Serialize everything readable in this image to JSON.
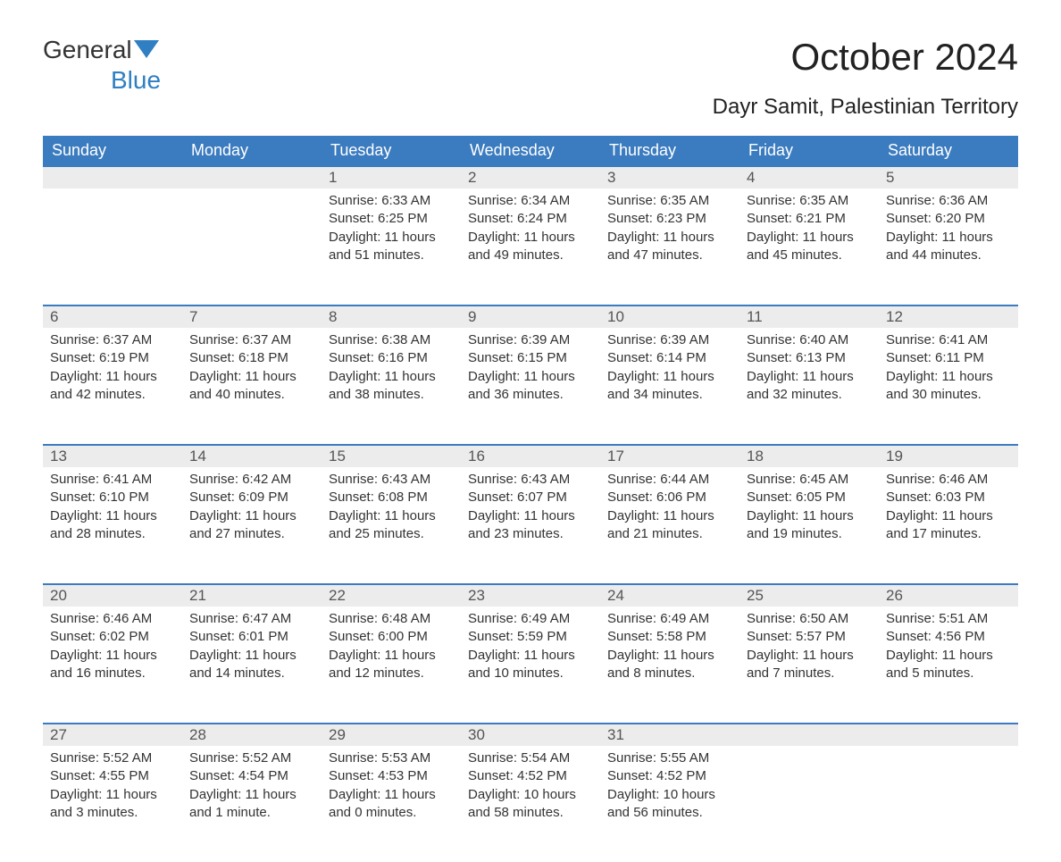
{
  "logo": {
    "text1": "General",
    "text2": "Blue"
  },
  "title": "October 2024",
  "subtitle": "Dayr Samit, Palestinian Territory",
  "colors": {
    "header_bg": "#3b7bbf",
    "header_text": "#ffffff",
    "daynum_bg": "#ececec",
    "daynum_border": "#3b7bbf",
    "body_text": "#333333",
    "logo_blue": "#2f7fc2",
    "background": "#ffffff"
  },
  "typography": {
    "title_fontsize": 42,
    "subtitle_fontsize": 24,
    "header_fontsize": 18,
    "daynum_fontsize": 17,
    "cell_fontsize": 15,
    "logo_fontsize": 28
  },
  "layout": {
    "columns": 7,
    "rows": 5,
    "first_day_column_index": 2
  },
  "weekdays": [
    "Sunday",
    "Monday",
    "Tuesday",
    "Wednesday",
    "Thursday",
    "Friday",
    "Saturday"
  ],
  "weeks": [
    [
      null,
      null,
      {
        "day": "1",
        "sunrise": "Sunrise: 6:33 AM",
        "sunset": "Sunset: 6:25 PM",
        "daylight1": "Daylight: 11 hours",
        "daylight2": "and 51 minutes."
      },
      {
        "day": "2",
        "sunrise": "Sunrise: 6:34 AM",
        "sunset": "Sunset: 6:24 PM",
        "daylight1": "Daylight: 11 hours",
        "daylight2": "and 49 minutes."
      },
      {
        "day": "3",
        "sunrise": "Sunrise: 6:35 AM",
        "sunset": "Sunset: 6:23 PM",
        "daylight1": "Daylight: 11 hours",
        "daylight2": "and 47 minutes."
      },
      {
        "day": "4",
        "sunrise": "Sunrise: 6:35 AM",
        "sunset": "Sunset: 6:21 PM",
        "daylight1": "Daylight: 11 hours",
        "daylight2": "and 45 minutes."
      },
      {
        "day": "5",
        "sunrise": "Sunrise: 6:36 AM",
        "sunset": "Sunset: 6:20 PM",
        "daylight1": "Daylight: 11 hours",
        "daylight2": "and 44 minutes."
      }
    ],
    [
      {
        "day": "6",
        "sunrise": "Sunrise: 6:37 AM",
        "sunset": "Sunset: 6:19 PM",
        "daylight1": "Daylight: 11 hours",
        "daylight2": "and 42 minutes."
      },
      {
        "day": "7",
        "sunrise": "Sunrise: 6:37 AM",
        "sunset": "Sunset: 6:18 PM",
        "daylight1": "Daylight: 11 hours",
        "daylight2": "and 40 minutes."
      },
      {
        "day": "8",
        "sunrise": "Sunrise: 6:38 AM",
        "sunset": "Sunset: 6:16 PM",
        "daylight1": "Daylight: 11 hours",
        "daylight2": "and 38 minutes."
      },
      {
        "day": "9",
        "sunrise": "Sunrise: 6:39 AM",
        "sunset": "Sunset: 6:15 PM",
        "daylight1": "Daylight: 11 hours",
        "daylight2": "and 36 minutes."
      },
      {
        "day": "10",
        "sunrise": "Sunrise: 6:39 AM",
        "sunset": "Sunset: 6:14 PM",
        "daylight1": "Daylight: 11 hours",
        "daylight2": "and 34 minutes."
      },
      {
        "day": "11",
        "sunrise": "Sunrise: 6:40 AM",
        "sunset": "Sunset: 6:13 PM",
        "daylight1": "Daylight: 11 hours",
        "daylight2": "and 32 minutes."
      },
      {
        "day": "12",
        "sunrise": "Sunrise: 6:41 AM",
        "sunset": "Sunset: 6:11 PM",
        "daylight1": "Daylight: 11 hours",
        "daylight2": "and 30 minutes."
      }
    ],
    [
      {
        "day": "13",
        "sunrise": "Sunrise: 6:41 AM",
        "sunset": "Sunset: 6:10 PM",
        "daylight1": "Daylight: 11 hours",
        "daylight2": "and 28 minutes."
      },
      {
        "day": "14",
        "sunrise": "Sunrise: 6:42 AM",
        "sunset": "Sunset: 6:09 PM",
        "daylight1": "Daylight: 11 hours",
        "daylight2": "and 27 minutes."
      },
      {
        "day": "15",
        "sunrise": "Sunrise: 6:43 AM",
        "sunset": "Sunset: 6:08 PM",
        "daylight1": "Daylight: 11 hours",
        "daylight2": "and 25 minutes."
      },
      {
        "day": "16",
        "sunrise": "Sunrise: 6:43 AM",
        "sunset": "Sunset: 6:07 PM",
        "daylight1": "Daylight: 11 hours",
        "daylight2": "and 23 minutes."
      },
      {
        "day": "17",
        "sunrise": "Sunrise: 6:44 AM",
        "sunset": "Sunset: 6:06 PM",
        "daylight1": "Daylight: 11 hours",
        "daylight2": "and 21 minutes."
      },
      {
        "day": "18",
        "sunrise": "Sunrise: 6:45 AM",
        "sunset": "Sunset: 6:05 PM",
        "daylight1": "Daylight: 11 hours",
        "daylight2": "and 19 minutes."
      },
      {
        "day": "19",
        "sunrise": "Sunrise: 6:46 AM",
        "sunset": "Sunset: 6:03 PM",
        "daylight1": "Daylight: 11 hours",
        "daylight2": "and 17 minutes."
      }
    ],
    [
      {
        "day": "20",
        "sunrise": "Sunrise: 6:46 AM",
        "sunset": "Sunset: 6:02 PM",
        "daylight1": "Daylight: 11 hours",
        "daylight2": "and 16 minutes."
      },
      {
        "day": "21",
        "sunrise": "Sunrise: 6:47 AM",
        "sunset": "Sunset: 6:01 PM",
        "daylight1": "Daylight: 11 hours",
        "daylight2": "and 14 minutes."
      },
      {
        "day": "22",
        "sunrise": "Sunrise: 6:48 AM",
        "sunset": "Sunset: 6:00 PM",
        "daylight1": "Daylight: 11 hours",
        "daylight2": "and 12 minutes."
      },
      {
        "day": "23",
        "sunrise": "Sunrise: 6:49 AM",
        "sunset": "Sunset: 5:59 PM",
        "daylight1": "Daylight: 11 hours",
        "daylight2": "and 10 minutes."
      },
      {
        "day": "24",
        "sunrise": "Sunrise: 6:49 AM",
        "sunset": "Sunset: 5:58 PM",
        "daylight1": "Daylight: 11 hours",
        "daylight2": "and 8 minutes."
      },
      {
        "day": "25",
        "sunrise": "Sunrise: 6:50 AM",
        "sunset": "Sunset: 5:57 PM",
        "daylight1": "Daylight: 11 hours",
        "daylight2": "and 7 minutes."
      },
      {
        "day": "26",
        "sunrise": "Sunrise: 5:51 AM",
        "sunset": "Sunset: 4:56 PM",
        "daylight1": "Daylight: 11 hours",
        "daylight2": "and 5 minutes."
      }
    ],
    [
      {
        "day": "27",
        "sunrise": "Sunrise: 5:52 AM",
        "sunset": "Sunset: 4:55 PM",
        "daylight1": "Daylight: 11 hours",
        "daylight2": "and 3 minutes."
      },
      {
        "day": "28",
        "sunrise": "Sunrise: 5:52 AM",
        "sunset": "Sunset: 4:54 PM",
        "daylight1": "Daylight: 11 hours",
        "daylight2": "and 1 minute."
      },
      {
        "day": "29",
        "sunrise": "Sunrise: 5:53 AM",
        "sunset": "Sunset: 4:53 PM",
        "daylight1": "Daylight: 11 hours",
        "daylight2": "and 0 minutes."
      },
      {
        "day": "30",
        "sunrise": "Sunrise: 5:54 AM",
        "sunset": "Sunset: 4:52 PM",
        "daylight1": "Daylight: 10 hours",
        "daylight2": "and 58 minutes."
      },
      {
        "day": "31",
        "sunrise": "Sunrise: 5:55 AM",
        "sunset": "Sunset: 4:52 PM",
        "daylight1": "Daylight: 10 hours",
        "daylight2": "and 56 minutes."
      },
      null,
      null
    ]
  ]
}
